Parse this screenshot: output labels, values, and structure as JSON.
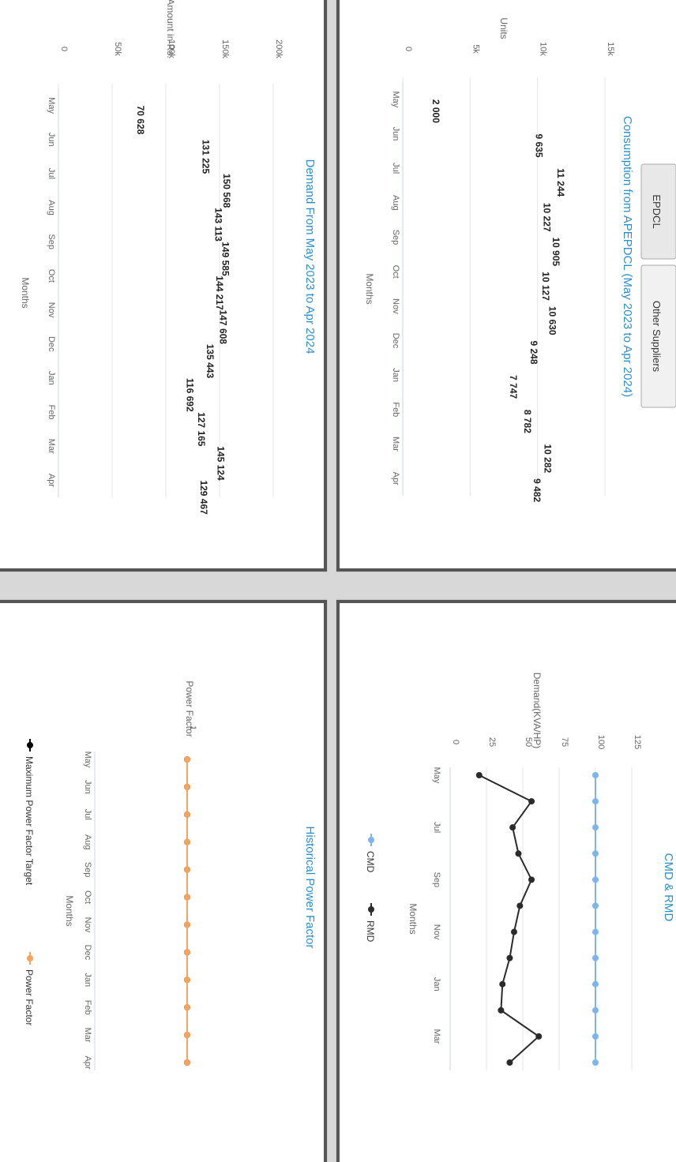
{
  "tabs": [
    {
      "label": "EPDCL"
    },
    {
      "label": "Other Suppliers"
    }
  ],
  "chart_data": [
    {
      "id": "consumption",
      "type": "bar",
      "title": "Consumption from APEPDCL (May 2023 to Apr 2024)",
      "xlabel": "Months",
      "ylabel": "Units",
      "categories": [
        "May",
        "Jun",
        "Jul",
        "Aug",
        "Sep",
        "Oct",
        "Nov",
        "Dec",
        "Jan",
        "Feb",
        "Mar",
        "Apr"
      ],
      "values": [
        2000,
        9635,
        11244,
        10227,
        10905,
        10127,
        10630,
        9248,
        7747,
        8782,
        10282,
        9482
      ],
      "data_labels": [
        "2 000",
        "9 635",
        "11 244",
        "10 227",
        "10 905",
        "10 127",
        "10 630",
        "9 248",
        "7 747",
        "8 782",
        "10 282",
        "9 482"
      ],
      "ylim": [
        0,
        15000
      ],
      "yticks": [
        "0",
        "5k",
        "10k",
        "15k"
      ],
      "ytick_values": [
        0,
        5000,
        10000,
        15000
      ],
      "colors": [
        "#7cb5ec",
        "#434348",
        "#90ed7d",
        "#f7a35c",
        "#8085e9",
        "#f15c80",
        "#e4d354",
        "#2b908f",
        "#f45b5b",
        "#91e8e1",
        "#7cb5ec",
        "#434348"
      ],
      "grid": true,
      "legend": "none"
    },
    {
      "id": "demand",
      "type": "bar",
      "title": "Demand From May 2023 to Apr 2024",
      "xlabel": "Months",
      "ylabel": "Amount in Rs.",
      "categories": [
        "May",
        "Jun",
        "Jul",
        "Aug",
        "Sep",
        "Oct",
        "Nov",
        "Dec",
        "Jan",
        "Feb",
        "Mar",
        "Apr"
      ],
      "values": [
        70628,
        131225,
        150568,
        143113,
        149585,
        144217,
        147608,
        135443,
        116692,
        127165,
        145124,
        129467
      ],
      "data_labels": [
        "70 628",
        "131 225",
        "150 568",
        "143 113",
        "149 585",
        "144 217",
        "147 608",
        "135 443",
        "116 692",
        "127 165",
        "145 124",
        "129 467"
      ],
      "ylim": [
        0,
        200000
      ],
      "yticks": [
        "0",
        "50k",
        "100k",
        "150k",
        "200k"
      ],
      "ytick_values": [
        0,
        50000,
        100000,
        150000,
        200000
      ],
      "colors": [
        "#7cb5ec",
        "#434348",
        "#90ed7d",
        "#f7a35c",
        "#8085e9",
        "#f15c80",
        "#e4d354",
        "#2b908f",
        "#f45b5b",
        "#91e8e1",
        "#7cb5ec",
        "#434348"
      ],
      "grid": true,
      "legend": "none"
    },
    {
      "id": "cmd_rmd",
      "type": "line",
      "title": "CMD & RMD",
      "xlabel": "Months",
      "ylabel": "Demand(KVA/HP)",
      "categories": [
        "May",
        "Jun",
        "Jul",
        "Aug",
        "Sep",
        "Oct",
        "Nov",
        "Dec",
        "Jan",
        "Feb",
        "Mar",
        "Apr"
      ],
      "xtick_labels": [
        "May",
        "",
        "Jul",
        "",
        "Sep",
        "",
        "Nov",
        "",
        "Jan",
        "",
        "Mar",
        ""
      ],
      "series": [
        {
          "name": "CMD",
          "color": "#7cb5ec",
          "values": [
            100,
            100,
            100,
            100,
            100,
            100,
            100,
            100,
            100,
            100,
            100,
            100
          ]
        },
        {
          "name": "RMD",
          "color": "#2b2b2b",
          "values": [
            20,
            56,
            43,
            47,
            56,
            48,
            44,
            41,
            36,
            35,
            61,
            41
          ]
        }
      ],
      "ylim": [
        0,
        125
      ],
      "yticks": [
        "0",
        "25",
        "50",
        "75",
        "100",
        "125"
      ],
      "ytick_values": [
        0,
        25,
        50,
        75,
        100,
        125
      ],
      "grid": true,
      "legend": "bottom"
    },
    {
      "id": "power_factor",
      "type": "line",
      "title": "Historical Power Factor",
      "xlabel": "Months",
      "ylabel": "Power Factor",
      "categories": [
        "May",
        "Jun",
        "Jul",
        "Aug",
        "Sep",
        "Oct",
        "Nov",
        "Dec",
        "Jan",
        "Feb",
        "Mar",
        "Apr"
      ],
      "series": [
        {
          "name": "Maximum Power Factor Target",
          "color": "#000000",
          "values": [
            1,
            1,
            1,
            1,
            1,
            1,
            1,
            1,
            1,
            1,
            1,
            1
          ]
        },
        {
          "name": "Power Factor",
          "color": "#f7a35c",
          "values": [
            1,
            1,
            1,
            1,
            1,
            1,
            1,
            1,
            1,
            1,
            1,
            1
          ]
        }
      ],
      "yticks": [
        "1"
      ],
      "ytick_values": [
        1
      ],
      "grid": true,
      "legend": "bottom"
    }
  ]
}
